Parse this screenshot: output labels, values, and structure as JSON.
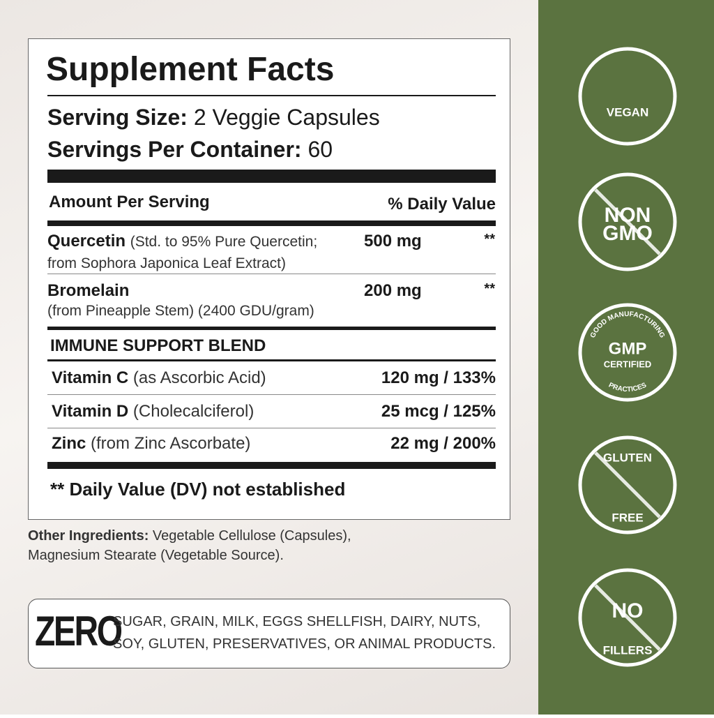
{
  "facts": {
    "title": "Supplement Facts",
    "serving_size": {
      "label": "Serving Size:",
      "value": "2 Veggie Capsules"
    },
    "servings_per_container": {
      "label": "Servings Per Container:",
      "value": "60"
    },
    "columns": [
      "Amount Per Serving",
      "% Daily Value"
    ],
    "rows": [
      {
        "name": "Quercetin",
        "desc": "(Std. to 95% Pure Quercetin;",
        "desc2": "from Sophora Japonica Leaf Extract)",
        "amount": "500 mg",
        "dv": "**"
      },
      {
        "name": "Bromelain",
        "desc2": "(from Pineapple Stem) (2400 GDU/gram)",
        "amount": "200 mg",
        "dv": "**"
      }
    ],
    "blend": {
      "title": "IMMUNE SUPPORT BLEND",
      "rows": [
        {
          "name": "Vitamin C",
          "desc": "(as Ascorbic Acid)",
          "amount": "120 mg / 133%"
        },
        {
          "name": "Vitamin D",
          "desc": "(Cholecalciferol)",
          "amount": "25 mcg / 125%"
        },
        {
          "name": "Zinc",
          "desc": "(from Zinc Ascorbate)",
          "amount": "22 mg / 200%"
        }
      ]
    },
    "footnote": "** Daily Value (DV) not established"
  },
  "other_ingredients": {
    "label": "Other Ingredients:",
    "text": "Vegetable Cellulose (Capsules),",
    "text2": "Magnesium Stearate (Vegetable Source)."
  },
  "zero": {
    "title": "ZERO",
    "lines": [
      "SUGAR, GRAIN, MILK, EGGS SHELLFISH, DAIRY, NUTS,",
      "SOY, GLUTEN, PRESERVATIVES, OR ANIMAL PRODUCTS."
    ]
  },
  "badges": [
    {
      "lines": [
        "VEGAN"
      ]
    },
    {
      "lines": [
        "NON",
        "GMO"
      ]
    },
    {
      "arc_top": "GOOD MANUFACTURING",
      "lines": [
        "GMP",
        "CERTIFIED"
      ],
      "arc_bottom": "PRACTICES"
    },
    {
      "lines": [
        "GLUTEN",
        "FREE"
      ]
    },
    {
      "lines": [
        "NO",
        "FILLERS"
      ]
    }
  ]
}
